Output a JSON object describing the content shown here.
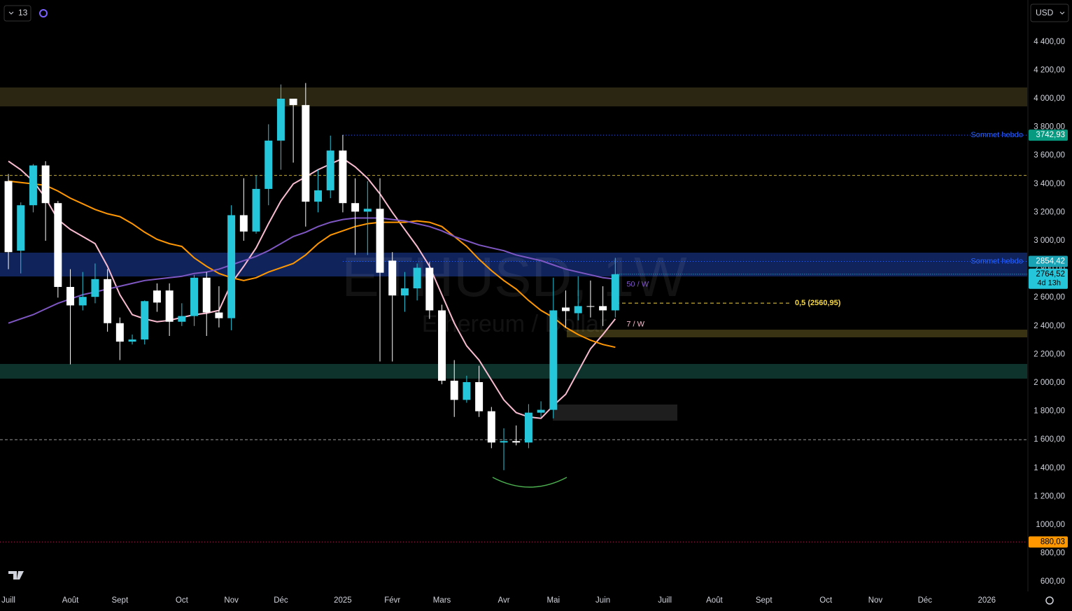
{
  "ui": {
    "interval": "13",
    "currency": "USD"
  },
  "chart_data": {
    "type": "candlestick",
    "title": "ETHUSD, 1W",
    "subtitle": "Ethereum / Dollar",
    "bull_color": "#26c6da",
    "bear_color": "#ffffff",
    "open": [
      3420,
      2930,
      3250,
      3530,
      3265,
      2675,
      2545,
      2605,
      2730,
      2420,
      2290,
      2305,
      2650,
      2650,
      2430,
      2470,
      2740,
      2495,
      2455,
      3180,
      3065,
      3365,
      3705,
      4000,
      3955,
      3275,
      3355,
      3635,
      3265,
      3205,
      3225,
      2860,
      2615,
      2665,
      2810,
      2510,
      2015,
      1880,
      2005,
      1800,
      1580,
      1590,
      1580,
      1790,
      1810,
      2530,
      2490,
      2540,
      2540,
      2510
    ],
    "high": [
      3470,
      3270,
      3540,
      3560,
      3280,
      2800,
      2780,
      2840,
      2800,
      2460,
      2340,
      2580,
      2700,
      2700,
      2560,
      2760,
      2780,
      2680,
      3250,
      3440,
      3460,
      3820,
      4100,
      4000,
      4110,
      3500,
      3740,
      3745,
      3440,
      3420,
      3440,
      2920,
      2780,
      2840,
      2850,
      2550,
      2160,
      2050,
      2120,
      1830,
      1680,
      1700,
      1850,
      1870,
      2740,
      2650,
      2750,
      2720,
      2680,
      2880
    ],
    "low": [
      2800,
      2770,
      3200,
      3000,
      2600,
      2130,
      2510,
      2560,
      2360,
      2160,
      2270,
      2270,
      2500,
      2330,
      2400,
      2400,
      2330,
      2390,
      2370,
      3000,
      3050,
      3250,
      3500,
      3550,
      3100,
      3200,
      3300,
      3200,
      2900,
      2900,
      2150,
      2150,
      2500,
      2580,
      2450,
      1990,
      1760,
      1860,
      1760,
      1540,
      1385,
      1560,
      1540,
      1760,
      1750,
      2390,
      2440,
      2460,
      2400,
      2460
    ],
    "close": [
      2920,
      3250,
      3530,
      3265,
      2675,
      2545,
      2605,
      2730,
      2420,
      2290,
      2305,
      2575,
      2565,
      2430,
      2470,
      2740,
      2495,
      2455,
      3180,
      3065,
      3365,
      3705,
      4000,
      3955,
      3275,
      3355,
      3635,
      3265,
      3205,
      3225,
      2775,
      2615,
      2665,
      2810,
      2510,
      2015,
      1880,
      2005,
      1800,
      1580,
      1590,
      1580,
      1790,
      1810,
      2510,
      2505,
      2540,
      2535,
      2510,
      2764.52
    ],
    "series": [
      {
        "name": "7 / W",
        "color": "#f8bbd0",
        "values": [
          3560,
          3500,
          3420,
          3300,
          3150,
          3080,
          3030,
          2980,
          2820,
          2620,
          2480,
          2450,
          2430,
          2440,
          2460,
          2480,
          2490,
          2510,
          2700,
          2820,
          2950,
          3120,
          3280,
          3400,
          3450,
          3500,
          3540,
          3580,
          3520,
          3440,
          3330,
          3200,
          3080,
          2960,
          2820,
          2620,
          2420,
          2260,
          2160,
          2020,
          1880,
          1790,
          1760,
          1750,
          1840,
          1920,
          2080,
          2240,
          2340,
          2450
        ]
      },
      {
        "color": "#ff9800",
        "values": [
          3420,
          3410,
          3400,
          3390,
          3350,
          3300,
          3260,
          3220,
          3190,
          3170,
          3120,
          3060,
          3010,
          2980,
          2960,
          2880,
          2820,
          2770,
          2740,
          2720,
          2740,
          2780,
          2810,
          2840,
          2900,
          2980,
          3040,
          3070,
          3100,
          3120,
          3130,
          3130,
          3130,
          3140,
          3130,
          3100,
          3030,
          2960,
          2870,
          2790,
          2720,
          2660,
          2580,
          2510,
          2460,
          2390,
          2340,
          2300,
          2270,
          2250
        ]
      },
      {
        "name": "50 / W",
        "color": "#7e57c2",
        "values": [
          2420,
          2450,
          2480,
          2520,
          2560,
          2590,
          2620,
          2640,
          2660,
          2680,
          2700,
          2720,
          2730,
          2740,
          2750,
          2770,
          2780,
          2800,
          2830,
          2860,
          2890,
          2930,
          2980,
          3030,
          3060,
          3100,
          3130,
          3150,
          3160,
          3160,
          3160,
          3150,
          3140,
          3120,
          3100,
          3070,
          3030,
          3000,
          2970,
          2950,
          2930,
          2900,
          2880,
          2860,
          2830,
          2800,
          2780,
          2760,
          2740,
          2730
        ]
      }
    ],
    "xlim": [
      -0.68,
      82.26
    ],
    "xticks": [
      {
        "value": 0,
        "label": "Juill"
      },
      {
        "value": 5,
        "label": "Août"
      },
      {
        "value": 9,
        "label": "Sept"
      },
      {
        "value": 14,
        "label": "Oct"
      },
      {
        "value": 18,
        "label": "Nov"
      },
      {
        "value": 22,
        "label": "Déc"
      },
      {
        "value": 27,
        "label": "2025"
      },
      {
        "value": 31,
        "label": "Févr"
      },
      {
        "value": 35,
        "label": "Mars"
      },
      {
        "value": 40,
        "label": "Avr"
      },
      {
        "value": 44,
        "label": "Mai"
      },
      {
        "value": 48,
        "label": "Juin"
      },
      {
        "value": 53,
        "label": "Juill"
      },
      {
        "value": 57,
        "label": "Août"
      },
      {
        "value": 61,
        "label": "Sept"
      },
      {
        "value": 66,
        "label": "Oct"
      },
      {
        "value": 70,
        "label": "Nov"
      },
      {
        "value": 74,
        "label": "Déc"
      },
      {
        "value": 79,
        "label": "2026"
      }
    ],
    "ylim": [
      532,
      4694.6
    ],
    "yticks": [
      {
        "value": 600,
        "label": "600,00"
      },
      {
        "value": 800,
        "label": "800,00"
      },
      {
        "value": 1000,
        "label": "1000,00"
      },
      {
        "value": 1200,
        "label": "1 200,00"
      },
      {
        "value": 1400,
        "label": "1 400,00"
      },
      {
        "value": 1600,
        "label": "1 600,00"
      },
      {
        "value": 1800,
        "label": "1 800,00"
      },
      {
        "value": 2000,
        "label": "2 000,00"
      },
      {
        "value": 2200,
        "label": "2 200,00"
      },
      {
        "value": 2400,
        "label": "2 400,00"
      },
      {
        "value": 2600,
        "label": "2 600,00"
      },
      {
        "value": 2800,
        "label": "2 800,00"
      },
      {
        "value": 3000,
        "label": "3 000,00"
      },
      {
        "value": 3200,
        "label": "3 200,00"
      },
      {
        "value": 3400,
        "label": "3 400,00"
      },
      {
        "value": 3600,
        "label": "3 600,00"
      },
      {
        "value": 3800,
        "label": "3 800,00"
      },
      {
        "value": 4000,
        "label": "4 000,00"
      },
      {
        "value": 4200,
        "label": "4 200,00"
      },
      {
        "value": 4400,
        "label": "4 400,00"
      }
    ],
    "levels": [
      {
        "value": 3742.93,
        "label": "3742,93",
        "text": "Sommet hebdo",
        "color": "#2962ff",
        "badge": "#089981"
      },
      {
        "value": 2854.42,
        "label": "2854,42",
        "text": "Sommet hebdo",
        "color": "#2962ff",
        "badge": "#1aa3b5"
      },
      {
        "value": 880.03,
        "label": "880,03",
        "color": "#c2185b",
        "badge": "#ff9800"
      }
    ],
    "last_price": {
      "value": 2764.52,
      "label": "2764,52",
      "countdown": "4d 13h"
    },
    "fib_level": {
      "value": 2560.95,
      "text": "0,5 (2560,95)",
      "color": "#f5d742"
    },
    "hlines": [
      {
        "value": 3460,
        "color": "#f5d742"
      },
      {
        "value": 1600,
        "color": "#bbbbbb"
      }
    ]
  }
}
